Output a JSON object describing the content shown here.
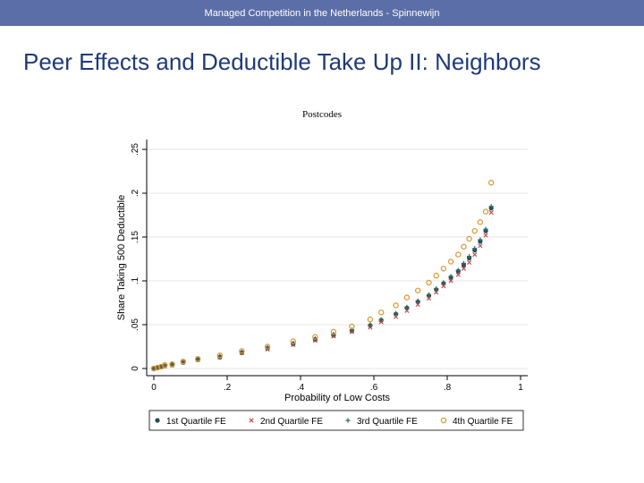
{
  "header": {
    "text": "Managed Competition in the Netherlands - Spinnewijn"
  },
  "slide": {
    "title": "Peer Effects and Deductible Take Up II: Neighbors"
  },
  "chart_data": {
    "type": "scatter",
    "title": "Postcodes",
    "xlabel": "Probability of Low Costs",
    "ylabel": "Share Taking 500 Deductible",
    "xlim": [
      0,
      1
    ],
    "ylim": [
      0,
      0.25
    ],
    "xticks": [
      0,
      0.2,
      0.4,
      0.6,
      0.8,
      1
    ],
    "xtick_labels": [
      "0",
      ".2",
      ".4",
      ".6",
      ".8",
      "1"
    ],
    "yticks": [
      0,
      0.05,
      0.1,
      0.15,
      0.2,
      0.25
    ],
    "ytick_labels": [
      "0",
      ".05",
      ".1",
      ".15",
      ".2",
      ".25"
    ],
    "grid": true,
    "legend_position": "bottom",
    "x": [
      0.0,
      0.01,
      0.02,
      0.03,
      0.05,
      0.08,
      0.12,
      0.18,
      0.24,
      0.31,
      0.38,
      0.44,
      0.49,
      0.54,
      0.59,
      0.62,
      0.66,
      0.69,
      0.72,
      0.75,
      0.77,
      0.79,
      0.81,
      0.83,
      0.845,
      0.86,
      0.875,
      0.89,
      0.905,
      0.92
    ],
    "series": [
      {
        "name": "1st Quartile FE",
        "color": "#1f4e5f",
        "marker": "dot",
        "values": [
          0.0,
          0.001,
          0.002,
          0.003,
          0.004,
          0.007,
          0.01,
          0.013,
          0.018,
          0.023,
          0.028,
          0.033,
          0.038,
          0.043,
          0.049,
          0.055,
          0.062,
          0.069,
          0.076,
          0.083,
          0.09,
          0.097,
          0.104,
          0.111,
          0.118,
          0.126,
          0.135,
          0.145,
          0.157,
          0.183
        ]
      },
      {
        "name": "2nd Quartile FE",
        "color": "#c0504d",
        "marker": "x",
        "values": [
          0.0,
          0.001,
          0.002,
          0.003,
          0.004,
          0.007,
          0.01,
          0.013,
          0.018,
          0.022,
          0.027,
          0.032,
          0.037,
          0.042,
          0.047,
          0.053,
          0.059,
          0.066,
          0.073,
          0.08,
          0.087,
          0.094,
          0.1,
          0.107,
          0.114,
          0.121,
          0.13,
          0.14,
          0.152,
          0.178
        ]
      },
      {
        "name": "3rd Quartile FE",
        "color": "#2e6b5e",
        "marker": "plus",
        "values": [
          0.0,
          0.001,
          0.002,
          0.003,
          0.005,
          0.007,
          0.011,
          0.014,
          0.019,
          0.024,
          0.029,
          0.034,
          0.039,
          0.044,
          0.05,
          0.056,
          0.063,
          0.07,
          0.077,
          0.084,
          0.091,
          0.098,
          0.105,
          0.112,
          0.12,
          0.128,
          0.137,
          0.147,
          0.159,
          0.185
        ]
      },
      {
        "name": "4th Quartile FE",
        "color": "#d9962b",
        "marker": "circle",
        "values": [
          0.0,
          0.001,
          0.002,
          0.004,
          0.005,
          0.008,
          0.011,
          0.015,
          0.02,
          0.025,
          0.031,
          0.036,
          0.042,
          0.048,
          0.056,
          0.064,
          0.072,
          0.081,
          0.089,
          0.098,
          0.106,
          0.114,
          0.122,
          0.13,
          0.139,
          0.148,
          0.157,
          0.167,
          0.179,
          0.212
        ]
      }
    ]
  }
}
